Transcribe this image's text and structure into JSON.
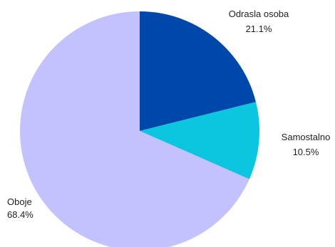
{
  "chart_data": {
    "type": "pie",
    "slices": [
      {
        "label": "Odrasla osoba",
        "value": 21.1,
        "value_text": "21.1%",
        "color": "#0047ab"
      },
      {
        "label": "Samostalno",
        "value": 10.5,
        "value_text": "10.5%",
        "color": "#0cc6e0"
      },
      {
        "label": "Oboje",
        "value": 68.4,
        "value_text": "68.4%",
        "color": "#c4c1ff"
      }
    ],
    "start": "top, clockwise",
    "legend": "none"
  }
}
